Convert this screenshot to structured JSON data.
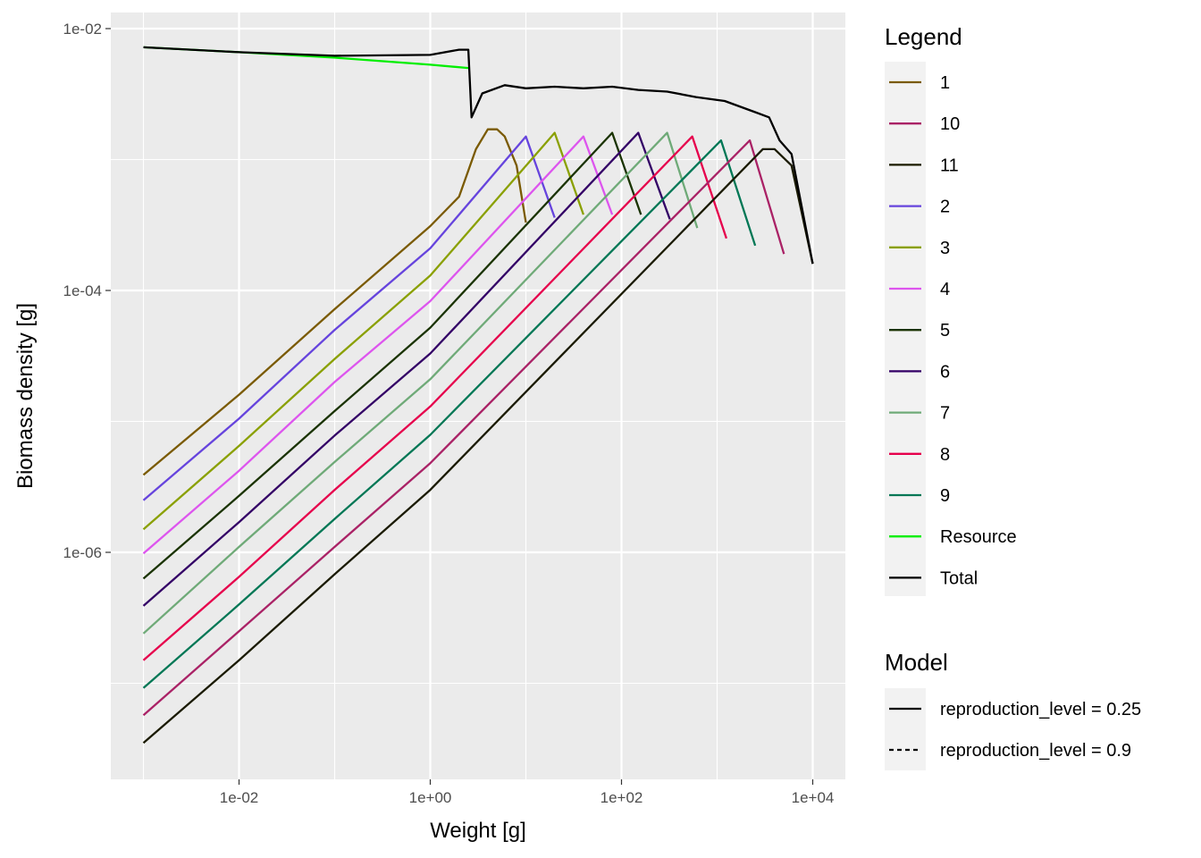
{
  "chart_data": {
    "type": "line",
    "xlabel": "Weight [g]",
    "ylabel": "Biomass density [g]",
    "xscale": "log10",
    "yscale": "log10",
    "xlim": [
      0.0001,
      15000
    ],
    "ylim": [
      1e-08,
      0.02
    ],
    "x_ticks": [
      {
        "value": 0.01,
        "label": "1e-02"
      },
      {
        "value": 1,
        "label": "1e+00"
      },
      {
        "value": 100,
        "label": "1e+02"
      },
      {
        "value": 10000,
        "label": "1e+04"
      }
    ],
    "y_ticks": [
      {
        "value": 0.01,
        "label": "1e-02"
      },
      {
        "value": 0.0001,
        "label": "1e-04"
      },
      {
        "value": 1e-06,
        "label": "1e-06"
      }
    ],
    "grid": true,
    "legend_placement": "right",
    "legend_title": "Legend",
    "model_legend_title": "Model",
    "series": [
      {
        "name": "1",
        "color": "#7a5a00",
        "linetype": "solid",
        "x": [
          0.001,
          0.01,
          0.1,
          1,
          2,
          3,
          4,
          5,
          6,
          8,
          10
        ],
        "y": [
          3.9e-06,
          1.6e-05,
          7.2e-05,
          0.00031,
          0.00052,
          0.0012,
          0.0017,
          0.0017,
          0.0015,
          0.0009,
          0.00033
        ]
      },
      {
        "name": "2",
        "color": "#6644dd",
        "linetype": "solid",
        "x": [
          0.001,
          0.01,
          0.1,
          1,
          10,
          20
        ],
        "y": [
          2.5e-06,
          1.05e-05,
          5e-05,
          0.00021,
          0.0015,
          0.00036
        ]
      },
      {
        "name": "3",
        "color": "#8aa000",
        "linetype": "solid",
        "x": [
          0.001,
          0.01,
          0.1,
          1,
          20,
          40
        ],
        "y": [
          1.5e-06,
          6.5e-06,
          3e-05,
          0.00013,
          0.0016,
          0.00038
        ]
      },
      {
        "name": "4",
        "color": "#dd55ee",
        "linetype": "solid",
        "x": [
          0.001,
          0.01,
          0.1,
          1,
          40,
          80
        ],
        "y": [
          9.8e-07,
          4.2e-06,
          2e-05,
          8.3e-05,
          0.0015,
          0.00038
        ]
      },
      {
        "name": "5",
        "color": "#1a3300",
        "linetype": "solid",
        "x": [
          0.001,
          0.01,
          0.1,
          1,
          80,
          160
        ],
        "y": [
          6.3e-07,
          2.7e-06,
          1.2e-05,
          5.2e-05,
          0.0016,
          0.00038
        ]
      },
      {
        "name": "6",
        "color": "#330066",
        "linetype": "solid",
        "x": [
          0.001,
          0.01,
          0.1,
          1,
          150,
          320
        ],
        "y": [
          3.9e-07,
          1.7e-06,
          7.8e-06,
          3.3e-05,
          0.0016,
          0.00035
        ]
      },
      {
        "name": "7",
        "color": "#6faa78",
        "linetype": "solid",
        "x": [
          0.001,
          0.01,
          0.1,
          1,
          300,
          620
        ],
        "y": [
          2.4e-07,
          1.1e-06,
          4.9e-06,
          2.1e-05,
          0.0016,
          0.0003
        ]
      },
      {
        "name": "8",
        "color": "#e6004c",
        "linetype": "solid",
        "x": [
          0.001,
          0.01,
          0.1,
          1,
          550,
          1250
        ],
        "y": [
          1.5e-07,
          6.5e-07,
          3e-06,
          1.3e-05,
          0.0015,
          0.00025
        ]
      },
      {
        "name": "9",
        "color": "#007755",
        "linetype": "solid",
        "x": [
          0.001,
          0.01,
          0.1,
          1,
          1100,
          2500
        ],
        "y": [
          9.2e-08,
          4e-07,
          1.8e-06,
          7.9e-06,
          0.0014,
          0.00022
        ]
      },
      {
        "name": "10",
        "color": "#aa2266",
        "linetype": "solid",
        "x": [
          0.001,
          0.01,
          0.1,
          1,
          2200,
          5000
        ],
        "y": [
          5.7e-08,
          2.5e-07,
          1.1e-06,
          4.8e-06,
          0.0014,
          0.00019
        ]
      },
      {
        "name": "11",
        "color": "#1a1a00",
        "linetype": "solid",
        "x": [
          0.001,
          0.01,
          0.1,
          1,
          3000,
          4000,
          6000,
          10000
        ],
        "y": [
          3.5e-08,
          1.5e-07,
          6.8e-07,
          3e-06,
          0.0012,
          0.0012,
          0.0009,
          0.00016
        ]
      },
      {
        "name": "Resource",
        "color": "#00ee00",
        "linetype": "solid",
        "x": [
          0.001,
          0.01,
          0.1,
          1,
          2.5
        ],
        "y": [
          0.0072,
          0.0066,
          0.006,
          0.0053,
          0.005
        ]
      },
      {
        "name": "Total",
        "color": "#000000",
        "linetype": "solid",
        "x": [
          0.001,
          0.01,
          0.1,
          1,
          2,
          2.5,
          2.7,
          3.5,
          6,
          10,
          20,
          40,
          80,
          150,
          300,
          600,
          1200,
          2500,
          3500,
          4500,
          6000,
          10000
        ],
        "y": [
          0.0072,
          0.0066,
          0.0062,
          0.0063,
          0.0069,
          0.0069,
          0.0021,
          0.0032,
          0.0037,
          0.0035,
          0.0036,
          0.0035,
          0.0036,
          0.0034,
          0.0033,
          0.003,
          0.0028,
          0.0023,
          0.0021,
          0.0014,
          0.0011,
          0.00016
        ]
      }
    ],
    "model_legend": [
      {
        "label": "reproduction_level = 0.25",
        "linetype": "solid"
      },
      {
        "label": "reproduction_level = 0.9",
        "linetype": "dashed"
      }
    ]
  }
}
